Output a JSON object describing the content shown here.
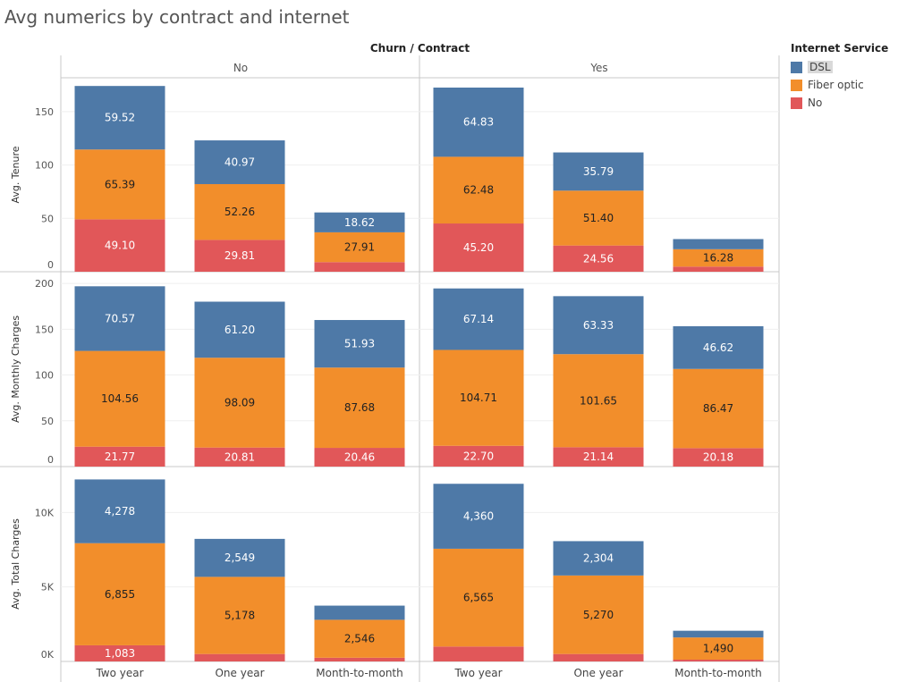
{
  "title": "Avg numerics by contract and internet",
  "chart_data": {
    "type": "bar",
    "stacked": true,
    "column_header": "Churn  /  Contract",
    "churn_groups": [
      "No",
      "Yes"
    ],
    "categories": [
      "Two year",
      "One year",
      "Month-to-month"
    ],
    "legend": {
      "title": "Internet Service",
      "placement": "right",
      "items": [
        {
          "name": "DSL",
          "color": "#4e79a7",
          "selected": true
        },
        {
          "name": "Fiber optic",
          "color": "#f28e2b",
          "selected": false
        },
        {
          "name": "No",
          "color": "#e15759",
          "selected": false
        }
      ]
    },
    "panels": [
      {
        "ylabel": "Avg. Tenure",
        "ylim": [
          0,
          175
        ],
        "ticks": [
          0,
          50,
          100,
          150
        ],
        "tick_labels": [
          "0",
          "50",
          "100",
          "150"
        ],
        "data": {
          "No": {
            "No": [
              49.1,
              29.81,
              9.0
            ],
            "Fiber optic": [
              65.39,
              52.26,
              27.91
            ],
            "DSL": [
              59.52,
              40.97,
              18.62
            ]
          },
          "Yes": {
            "No": [
              45.2,
              24.56,
              4.8
            ],
            "Fiber optic": [
              62.48,
              51.4,
              16.28
            ],
            "DSL": [
              64.83,
              35.79,
              9.5
            ]
          }
        },
        "labels": {
          "No": {
            "No": [
              "49.10",
              "29.81",
              ""
            ],
            "Fiber optic": [
              "65.39",
              "52.26",
              "27.91"
            ],
            "DSL": [
              "59.52",
              "40.97",
              "18.62"
            ]
          },
          "Yes": {
            "No": [
              "45.20",
              "24.56",
              ""
            ],
            "Fiber optic": [
              "62.48",
              "51.40",
              "16.28"
            ],
            "DSL": [
              "64.83",
              "35.79",
              ""
            ]
          }
        }
      },
      {
        "ylabel": "Avg. Monthly Charges",
        "ylim": [
          0,
          205
        ],
        "ticks": [
          0,
          50,
          100,
          150,
          200
        ],
        "tick_labels": [
          "0",
          "50",
          "100",
          "150",
          "200"
        ],
        "data": {
          "No": {
            "No": [
              21.77,
              20.81,
              20.46
            ],
            "Fiber optic": [
              104.56,
              98.09,
              87.68
            ],
            "DSL": [
              70.57,
              61.2,
              51.93
            ]
          },
          "Yes": {
            "No": [
              22.7,
              21.14,
              20.18
            ],
            "Fiber optic": [
              104.71,
              101.65,
              86.47
            ],
            "DSL": [
              67.14,
              63.33,
              46.62
            ]
          }
        },
        "labels": {
          "No": {
            "No": [
              "21.77",
              "20.81",
              "20.46"
            ],
            "Fiber optic": [
              "104.56",
              "98.09",
              "87.68"
            ],
            "DSL": [
              "70.57",
              "61.20",
              "51.93"
            ]
          },
          "Yes": {
            "No": [
              "22.70",
              "21.14",
              "20.18"
            ],
            "Fiber optic": [
              "104.71",
              "101.65",
              "86.47"
            ],
            "DSL": [
              "67.14",
              "63.33",
              "46.62"
            ]
          }
        }
      },
      {
        "ylabel": "Avg. Total Charges",
        "ylim": [
          0,
          12600
        ],
        "ticks": [
          0,
          5000,
          10000
        ],
        "tick_labels": [
          "0K",
          "5K",
          "10K"
        ],
        "data": {
          "No": {
            "No": [
              1083,
              500,
              250
            ],
            "Fiber optic": [
              6855,
              5178,
              2546
            ],
            "DSL": [
              4278,
              2549,
              950
            ]
          },
          "Yes": {
            "No": [
              1000,
              500,
              120
            ],
            "Fiber optic": [
              6565,
              5270,
              1490
            ],
            "DSL": [
              4360,
              2304,
              450
            ]
          }
        },
        "labels": {
          "No": {
            "No": [
              "1,083",
              "",
              ""
            ],
            "Fiber optic": [
              "6,855",
              "5,178",
              "2,546"
            ],
            "DSL": [
              "4,278",
              "2,549",
              ""
            ]
          },
          "Yes": {
            "No": [
              "",
              "",
              ""
            ],
            "Fiber optic": [
              "6,565",
              "5,270",
              "1,490"
            ],
            "DSL": [
              "4,360",
              "2,304",
              ""
            ]
          }
        }
      }
    ]
  }
}
